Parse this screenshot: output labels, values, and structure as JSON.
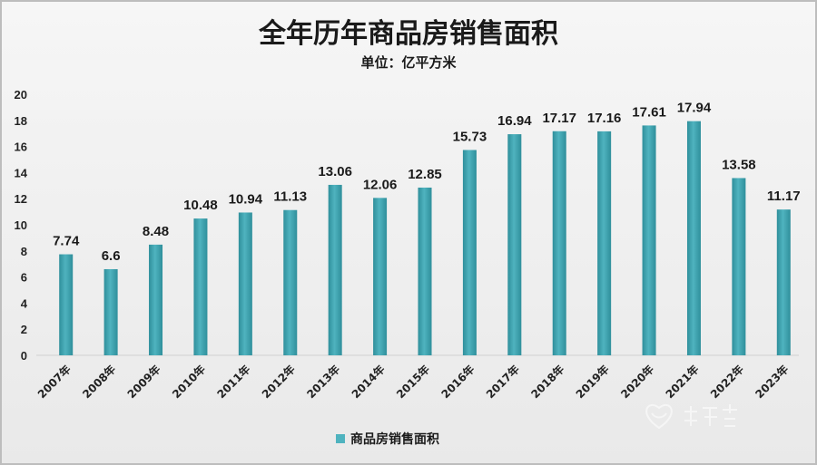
{
  "colors": {
    "bar": "#4fb3bf",
    "bar_dark": "#2f8f9b",
    "background": "#efefef"
  },
  "chart_data": {
    "type": "bar",
    "title": "全年历年商品房销售面积",
    "subtitle": "单位：亿平方米",
    "categories": [
      "2007年",
      "2008年",
      "2009年",
      "2010年",
      "2011年",
      "2012年",
      "2013年",
      "2014年",
      "2015年",
      "2016年",
      "2017年",
      "2018年",
      "2019年",
      "2020年",
      "2021年",
      "2022年",
      "2023年"
    ],
    "series": [
      {
        "name": "商品房销售面积",
        "values": [
          7.74,
          6.6,
          8.48,
          10.48,
          10.94,
          11.13,
          13.06,
          12.06,
          12.85,
          15.73,
          16.94,
          17.17,
          17.16,
          17.61,
          17.94,
          13.58,
          11.17
        ]
      }
    ],
    "ylim": [
      0,
      20
    ],
    "yticks": [
      0,
      2,
      4,
      6,
      8,
      10,
      12,
      14,
      16,
      18,
      20
    ],
    "grid": false,
    "legend_position": "bottom"
  }
}
